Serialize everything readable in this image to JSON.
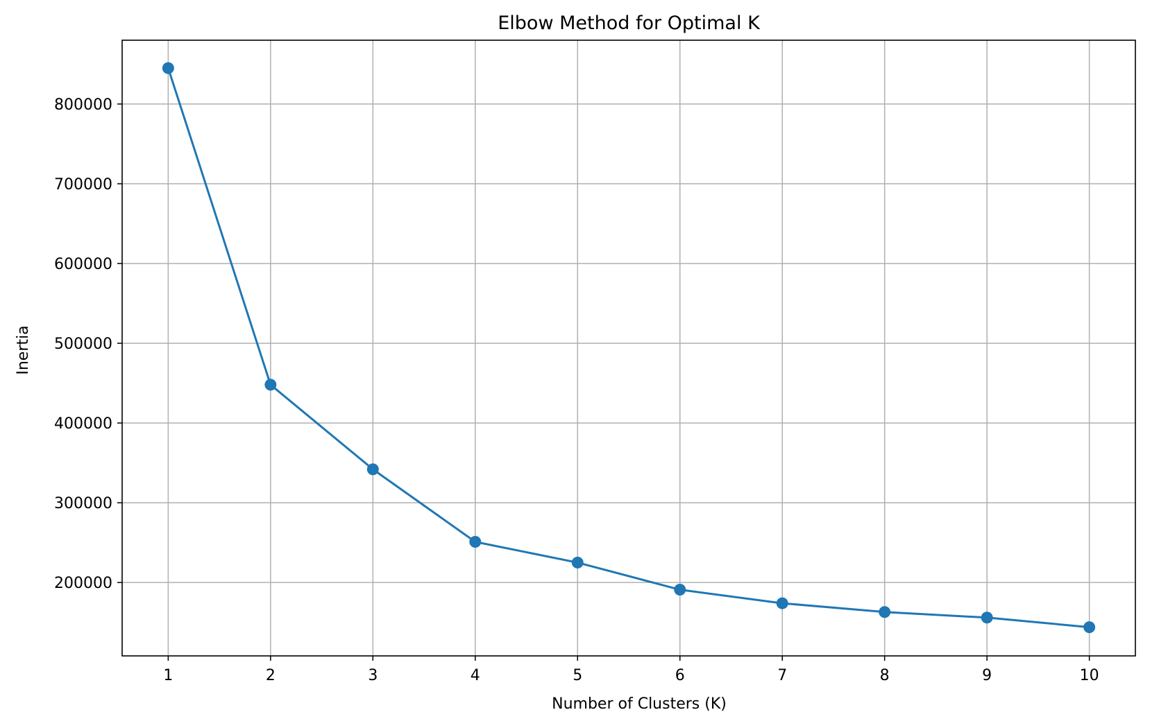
{
  "chart_data": {
    "type": "line",
    "title": "Elbow Method for Optimal K",
    "xlabel": "Number of Clusters (K)",
    "ylabel": "Inertia",
    "x": [
      1,
      2,
      3,
      4,
      5,
      6,
      7,
      8,
      9,
      10
    ],
    "x_ticks": [
      "1",
      "2",
      "3",
      "4",
      "5",
      "6",
      "7",
      "8",
      "9",
      "10"
    ],
    "y_ticks": [
      200000,
      300000,
      400000,
      500000,
      600000,
      700000,
      800000
    ],
    "y_tick_labels": [
      "200000",
      "300000",
      "400000",
      "500000",
      "600000",
      "700000",
      "800000"
    ],
    "xlim": [
      0.55,
      10.45
    ],
    "ylim": [
      108000,
      880000
    ],
    "grid": true,
    "marker": "circle",
    "series": [
      {
        "values": [
          845000,
          448000,
          342000,
          251000,
          225000,
          191000,
          174000,
          163000,
          156000,
          144000
        ]
      }
    ]
  },
  "colors": {
    "series": "#1f77b4",
    "grid": "#b0b0b0",
    "axes": "#000000",
    "background": "#ffffff"
  }
}
